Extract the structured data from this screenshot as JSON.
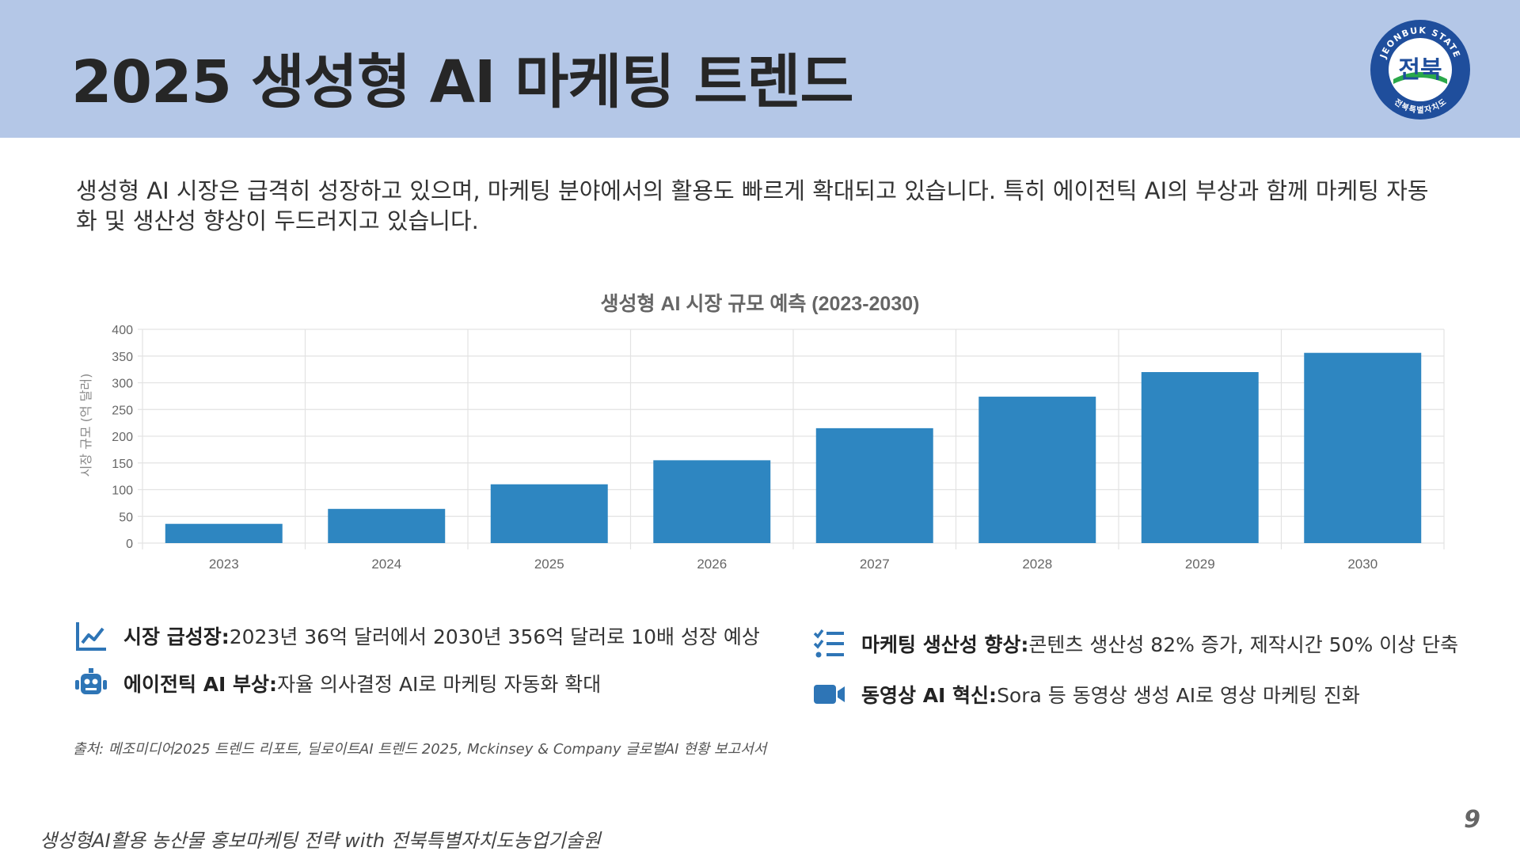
{
  "slide": {
    "title": "2025 생성형 AI 마케팅 트렌드",
    "intro": "생성형 AI 시장은 급격히 성장하고 있으며, 마케팅 분야에서의 활용도 빠르게 확대되고 있습니다. 특히 에이전틱 AI의 부상과 함께 마케팅 자동화 및 생산성 향상이 두드러지고 있습니다.",
    "page_number": "9",
    "footer": "생성형AI활용 농산물 홍보마케팅 전략 with 전북특별자치도농업기술원"
  },
  "logo": {
    "arc_text": "JEONBUK STATE",
    "main_text": "전북",
    "bottom_text": "전북특별자치도"
  },
  "features": [
    {
      "icon": "chart-line-icon",
      "label": "시장 급성장:",
      "text": " 2023년 36억 달러에서 2030년 356억 달러로 10배 성장 예상"
    },
    {
      "icon": "robot-icon",
      "label": "에이전틱 AI 부상:",
      "text": " 자율 의사결정 AI로 마케팅 자동화 확대"
    },
    {
      "icon": "checklist-icon",
      "label": "마케팅 생산성 향상:",
      "text": " 콘텐츠 생산성 82% 증가, 제작시간 50% 이상 단축"
    },
    {
      "icon": "video-camera-icon",
      "label": "동영상 AI 혁신:",
      "text": " Sora 등 동영상 생성 AI로 영상 마케팅 진화"
    }
  ],
  "source": "출처: 메조미디어2025 트렌드 리포트, 딜로이트AI 트렌드 2025, Mckinsey & Company 글로벌AI 현황 보고서서",
  "chart_data": {
    "type": "bar",
    "title": "생성형 AI 시장 규모 예측 (2023-2030)",
    "ylabel": "시장 규모 (억 달러)",
    "xlabel": "",
    "categories": [
      "2023",
      "2024",
      "2025",
      "2026",
      "2027",
      "2028",
      "2029",
      "2030"
    ],
    "values": [
      36,
      64,
      110,
      155,
      215,
      274,
      320,
      356
    ],
    "ylim": [
      0,
      400
    ],
    "yticks": [
      0,
      50,
      100,
      150,
      200,
      250,
      300,
      350,
      400
    ],
    "grid": true,
    "legend": "none",
    "bar_color": "#2e86c1"
  }
}
